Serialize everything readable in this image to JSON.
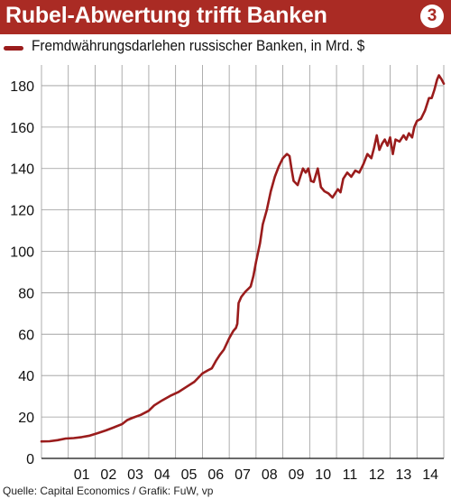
{
  "header": {
    "title": "Rubel-Abwertung trifft Banken",
    "badge": "3",
    "background_color": "#aa2b24"
  },
  "source": "Quelle: Capital Economics / Grafik: FuW, vp",
  "chart_data": {
    "type": "line",
    "title": "Rubel-Abwertung trifft Banken",
    "xlabel": "",
    "ylabel": "",
    "ylim": [
      0,
      190
    ],
    "xlim": [
      2000.0,
      2015.0
    ],
    "yticks": [
      0,
      20,
      40,
      60,
      80,
      100,
      120,
      140,
      160,
      180
    ],
    "xtick_labels": [
      "01",
      "02",
      "03",
      "04",
      "05",
      "06",
      "07",
      "08",
      "09",
      "10",
      "11",
      "12",
      "13",
      "14"
    ],
    "grid": true,
    "legend_position": "top-left",
    "series": [
      {
        "name": "Fremdwährungsdarlehen russischer Banken, in Mrd. $",
        "color": "#9a1c1c",
        "points": [
          [
            2000.0,
            8.2
          ],
          [
            2000.3,
            8.3
          ],
          [
            2000.6,
            8.8
          ],
          [
            2000.9,
            9.6
          ],
          [
            2001.2,
            9.8
          ],
          [
            2001.5,
            10.3
          ],
          [
            2001.8,
            11.0
          ],
          [
            2002.1,
            12.2
          ],
          [
            2002.4,
            13.5
          ],
          [
            2002.7,
            15.0
          ],
          [
            2003.0,
            16.5
          ],
          [
            2003.2,
            18.5
          ],
          [
            2003.4,
            19.6
          ],
          [
            2003.7,
            21.0
          ],
          [
            2004.0,
            23.0
          ],
          [
            2004.2,
            25.6
          ],
          [
            2004.5,
            28.0
          ],
          [
            2004.8,
            30.2
          ],
          [
            2005.1,
            32.0
          ],
          [
            2005.4,
            34.5
          ],
          [
            2005.7,
            37.0
          ],
          [
            2006.0,
            41.0
          ],
          [
            2006.2,
            42.5
          ],
          [
            2006.35,
            43.5
          ],
          [
            2006.5,
            47.0
          ],
          [
            2006.65,
            50.0
          ],
          [
            2006.8,
            52.5
          ],
          [
            2007.0,
            58.0
          ],
          [
            2007.15,
            61.5
          ],
          [
            2007.25,
            63.0
          ],
          [
            2007.3,
            65.0
          ],
          [
            2007.35,
            75.0
          ],
          [
            2007.45,
            78.0
          ],
          [
            2007.6,
            80.5
          ],
          [
            2007.8,
            83.0
          ],
          [
            2007.9,
            88.0
          ],
          [
            2008.0,
            95.0
          ],
          [
            2008.15,
            104.0
          ],
          [
            2008.25,
            113.0
          ],
          [
            2008.4,
            120.0
          ],
          [
            2008.55,
            129.0
          ],
          [
            2008.7,
            136.0
          ],
          [
            2008.85,
            141.0
          ],
          [
            2009.0,
            145.0
          ],
          [
            2009.15,
            147.0
          ],
          [
            2009.25,
            146.0
          ],
          [
            2009.32,
            140.0
          ],
          [
            2009.4,
            134.0
          ],
          [
            2009.55,
            132.0
          ],
          [
            2009.65,
            136.0
          ],
          [
            2009.75,
            140.0
          ],
          [
            2009.85,
            138.0
          ],
          [
            2009.95,
            140.0
          ],
          [
            2010.05,
            134.0
          ],
          [
            2010.15,
            133.5
          ],
          [
            2010.3,
            140.0
          ],
          [
            2010.42,
            131.0
          ],
          [
            2010.55,
            129.0
          ],
          [
            2010.7,
            128.0
          ],
          [
            2010.85,
            126.0
          ],
          [
            2010.95,
            128.0
          ],
          [
            2011.05,
            130.0
          ],
          [
            2011.15,
            128.5
          ],
          [
            2011.25,
            135.0
          ],
          [
            2011.4,
            138.0
          ],
          [
            2011.55,
            136.0
          ],
          [
            2011.7,
            139.0
          ],
          [
            2011.85,
            138.0
          ],
          [
            2012.0,
            142.0
          ],
          [
            2012.15,
            147.0
          ],
          [
            2012.3,
            145.0
          ],
          [
            2012.4,
            150.0
          ],
          [
            2012.5,
            156.0
          ],
          [
            2012.6,
            149.0
          ],
          [
            2012.7,
            152.0
          ],
          [
            2012.8,
            154.0
          ],
          [
            2012.9,
            151.0
          ],
          [
            2013.0,
            155.0
          ],
          [
            2013.1,
            147.0
          ],
          [
            2013.2,
            154.0
          ],
          [
            2013.35,
            153.0
          ],
          [
            2013.5,
            156.0
          ],
          [
            2013.6,
            154.0
          ],
          [
            2013.7,
            157.0
          ],
          [
            2013.82,
            155.0
          ],
          [
            2013.9,
            160.0
          ],
          [
            2014.0,
            163.0
          ],
          [
            2014.15,
            164.0
          ],
          [
            2014.3,
            168.0
          ],
          [
            2014.45,
            174.0
          ],
          [
            2014.55,
            174.0
          ],
          [
            2014.65,
            178.0
          ],
          [
            2014.75,
            183.0
          ],
          [
            2014.82,
            185.0
          ],
          [
            2014.92,
            183.0
          ],
          [
            2015.0,
            181.0
          ]
        ]
      }
    ]
  }
}
